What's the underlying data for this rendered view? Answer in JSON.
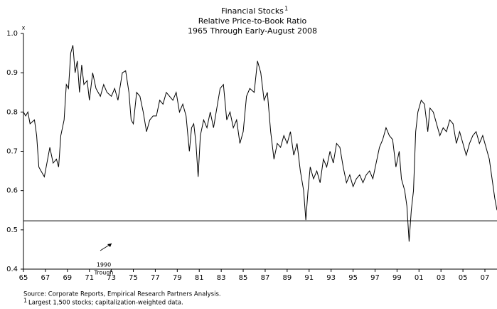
{
  "chart_data": {
    "type": "line",
    "title": "Financial Stocks",
    "title_footnote_mark": "1",
    "subtitle": [
      "Relative Price-to-Book Ratio",
      "1965 Through Early-August 2008"
    ],
    "y_unit": "x",
    "color": "#000000",
    "x": [
      1965.0,
      1965.2,
      1965.4,
      1965.6,
      1966.0,
      1966.2,
      1966.4,
      1966.6,
      1966.9,
      1967.2,
      1967.4,
      1967.7,
      1968.0,
      1968.2,
      1968.4,
      1968.7,
      1968.9,
      1969.1,
      1969.3,
      1969.5,
      1969.7,
      1969.9,
      1970.1,
      1970.3,
      1970.5,
      1970.8,
      1971.0,
      1971.3,
      1971.6,
      1972.0,
      1972.3,
      1972.6,
      1973.0,
      1973.3,
      1973.6,
      1974.0,
      1974.3,
      1974.6,
      1974.8,
      1975.0,
      1975.3,
      1975.6,
      1975.9,
      1976.2,
      1976.5,
      1976.8,
      1977.1,
      1977.4,
      1977.7,
      1978.0,
      1978.3,
      1978.6,
      1978.9,
      1979.2,
      1979.5,
      1979.8,
      1980.1,
      1980.3,
      1980.5,
      1980.7,
      1980.9,
      1981.1,
      1981.4,
      1981.7,
      1982.0,
      1982.3,
      1982.6,
      1982.9,
      1983.2,
      1983.5,
      1983.8,
      1984.1,
      1984.4,
      1984.7,
      1985.0,
      1985.3,
      1985.6,
      1986.0,
      1986.3,
      1986.6,
      1986.9,
      1987.2,
      1987.5,
      1987.8,
      1988.1,
      1988.4,
      1988.7,
      1989.0,
      1989.3,
      1989.6,
      1989.9,
      1990.2,
      1990.5,
      1990.7,
      1990.9,
      1991.1,
      1991.4,
      1991.7,
      1992.0,
      1992.3,
      1992.6,
      1992.9,
      1993.2,
      1993.5,
      1993.8,
      1994.1,
      1994.4,
      1994.7,
      1995.0,
      1995.3,
      1995.6,
      1995.9,
      1996.2,
      1996.5,
      1996.8,
      1997.1,
      1997.4,
      1997.7,
      1998.0,
      1998.3,
      1998.6,
      1998.9,
      1999.2,
      1999.4,
      1999.7,
      1999.9,
      2000.1,
      2000.3,
      2000.5,
      2000.7,
      2000.9,
      2001.2,
      2001.5,
      2001.8,
      2002.0,
      2002.3,
      2002.6,
      2002.9,
      2003.2,
      2003.5,
      2003.8,
      2004.1,
      2004.4,
      2004.7,
      2005.0,
      2005.3,
      2005.6,
      2005.9,
      2006.2,
      2006.5,
      2006.8,
      2007.1,
      2007.4,
      2007.7,
      2007.9,
      2008.1
    ],
    "values": [
      0.8,
      0.79,
      0.8,
      0.77,
      0.78,
      0.74,
      0.66,
      0.65,
      0.635,
      0.68,
      0.71,
      0.67,
      0.68,
      0.66,
      0.74,
      0.78,
      0.87,
      0.86,
      0.95,
      0.97,
      0.9,
      0.93,
      0.85,
      0.92,
      0.87,
      0.88,
      0.83,
      0.9,
      0.86,
      0.84,
      0.87,
      0.85,
      0.84,
      0.86,
      0.83,
      0.9,
      0.905,
      0.85,
      0.78,
      0.77,
      0.85,
      0.84,
      0.8,
      0.75,
      0.78,
      0.79,
      0.79,
      0.83,
      0.82,
      0.85,
      0.84,
      0.83,
      0.85,
      0.8,
      0.82,
      0.79,
      0.7,
      0.76,
      0.77,
      0.72,
      0.635,
      0.74,
      0.78,
      0.76,
      0.8,
      0.76,
      0.81,
      0.86,
      0.87,
      0.78,
      0.8,
      0.76,
      0.78,
      0.72,
      0.75,
      0.84,
      0.86,
      0.85,
      0.93,
      0.9,
      0.83,
      0.85,
      0.75,
      0.68,
      0.72,
      0.71,
      0.74,
      0.72,
      0.75,
      0.69,
      0.72,
      0.65,
      0.6,
      0.525,
      0.6,
      0.66,
      0.63,
      0.65,
      0.62,
      0.68,
      0.66,
      0.7,
      0.67,
      0.72,
      0.71,
      0.66,
      0.62,
      0.64,
      0.61,
      0.63,
      0.64,
      0.62,
      0.64,
      0.65,
      0.63,
      0.67,
      0.71,
      0.73,
      0.76,
      0.74,
      0.73,
      0.66,
      0.7,
      0.63,
      0.6,
      0.56,
      0.47,
      0.55,
      0.6,
      0.75,
      0.8,
      0.83,
      0.82,
      0.75,
      0.81,
      0.8,
      0.77,
      0.74,
      0.76,
      0.75,
      0.78,
      0.77,
      0.72,
      0.75,
      0.72,
      0.69,
      0.72,
      0.74,
      0.75,
      0.72,
      0.74,
      0.71,
      0.68,
      0.62,
      0.58,
      0.55
    ],
    "xlim": [
      1965,
      2008.1
    ],
    "ylim": [
      0.4,
      1.0
    ],
    "xticks": [
      {
        "value": 1965,
        "label": "65"
      },
      {
        "value": 1967,
        "label": "67"
      },
      {
        "value": 1969,
        "label": "69"
      },
      {
        "value": 1971,
        "label": "71"
      },
      {
        "value": 1973,
        "label": "73"
      },
      {
        "value": 1975,
        "label": "75"
      },
      {
        "value": 1977,
        "label": "77"
      },
      {
        "value": 1979,
        "label": "79"
      },
      {
        "value": 1981,
        "label": "81"
      },
      {
        "value": 1983,
        "label": "83"
      },
      {
        "value": 1985,
        "label": "85"
      },
      {
        "value": 1987,
        "label": "87"
      },
      {
        "value": 1989,
        "label": "89"
      },
      {
        "value": 1991,
        "label": "91"
      },
      {
        "value": 1993,
        "label": "93"
      },
      {
        "value": 1995,
        "label": "95"
      },
      {
        "value": 1997,
        "label": "97"
      },
      {
        "value": 1999,
        "label": "99"
      },
      {
        "value": 2001,
        "label": "01"
      },
      {
        "value": 2003,
        "label": "03"
      },
      {
        "value": 2005,
        "label": "05"
      },
      {
        "value": 2007,
        "label": "07"
      }
    ],
    "yticks": [
      0.4,
      0.5,
      0.6,
      0.7,
      0.8,
      0.9,
      {
        "value": 1.0,
        "label": "1.0"
      }
    ],
    "reference_line": {
      "value": 0.523,
      "label": [
        "1990",
        "Trough"
      ]
    },
    "footnotes": {
      "source": "Source: Corporate Reports, Empirical Research Partners Analysis.",
      "mark": "1",
      "note": "Largest 1,500 stocks; capitalization-weighted data."
    }
  }
}
